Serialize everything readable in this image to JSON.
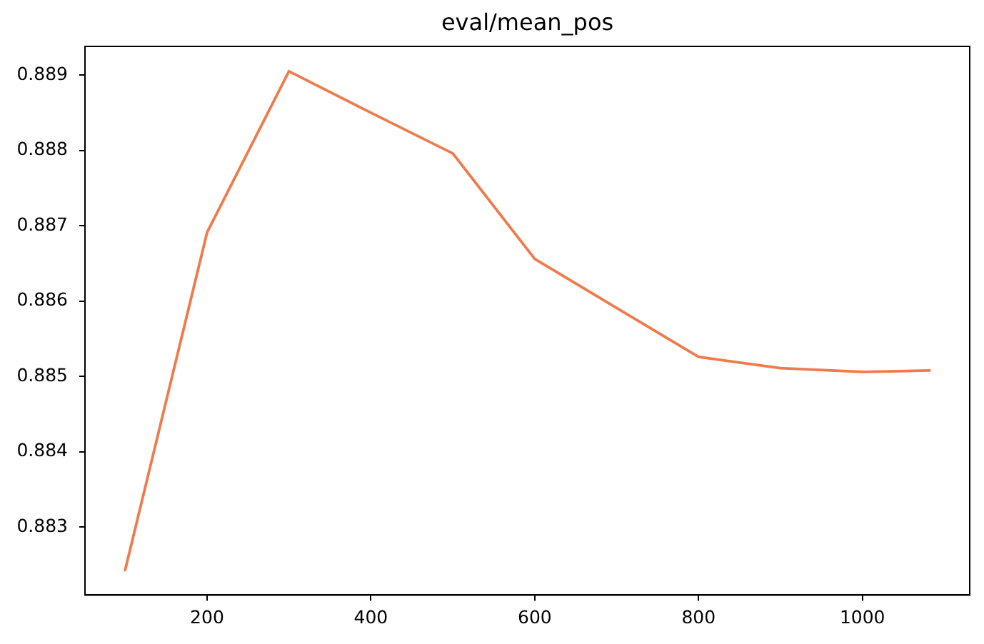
{
  "chart_data": {
    "type": "line",
    "title": "eval/mean_pos",
    "x": [
      100,
      200,
      300,
      400,
      500,
      600,
      700,
      800,
      900,
      1000,
      1082
    ],
    "series": [
      {
        "color": "#ef7b4d",
        "values": [
          0.88243,
          0.88691,
          0.88905,
          0.8885,
          0.88796,
          0.88656,
          0.88591,
          0.88526,
          0.88511,
          0.88506,
          0.88508
        ]
      }
    ],
    "xlim": [
      51,
      1131
    ],
    "xticks": [
      200,
      400,
      600,
      800,
      1000
    ],
    "ylim": [
      0.8821,
      0.88938
    ],
    "yticks": [
      0.883,
      0.884,
      0.885,
      0.886,
      0.887,
      0.888,
      0.889
    ],
    "grid": false,
    "legend": false
  }
}
